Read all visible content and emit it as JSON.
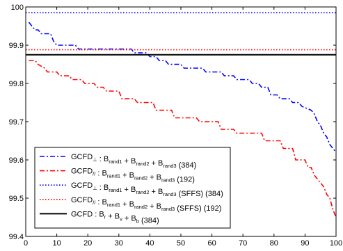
{
  "chart_data": {
    "type": "line",
    "title": "",
    "xlabel": "",
    "ylabel": "",
    "xlim": [
      0,
      100
    ],
    "ylim": [
      99.4,
      100
    ],
    "xticks": [
      "0",
      "10",
      "20",
      "30",
      "40",
      "50",
      "60",
      "70",
      "80",
      "90",
      "100"
    ],
    "yticks": [
      "99.4",
      "99.5",
      "99.6",
      "99.7",
      "99.8",
      "99.9",
      "100"
    ],
    "grid": false,
    "legend_position": "bottom-left",
    "series": [
      {
        "name": "GCFD⊥ : Brand1 + Brand2 + Brand3 (384)",
        "legend": {
          "prefix": "GCFD",
          "prefix_sub": "⊥",
          "parts": [
            [
              "B",
              "rand1"
            ],
            [
              "B",
              "rand2"
            ],
            [
              "B",
              "rand3"
            ]
          ],
          "suffix": "(384)"
        },
        "color": "#0000ff",
        "style": "dashdot",
        "x": [
          1,
          2,
          3,
          4,
          5,
          8,
          9,
          10,
          16,
          17,
          22,
          23,
          34,
          35,
          39,
          40,
          42,
          43,
          45,
          46,
          50,
          51,
          57,
          58,
          63,
          64,
          67,
          68,
          72,
          73,
          75,
          76,
          78,
          79,
          81,
          82,
          85,
          86,
          88,
          89,
          92,
          93,
          94,
          95,
          96,
          97,
          98,
          99,
          100
        ],
        "y": [
          99.96,
          99.95,
          99.94,
          99.94,
          99.93,
          99.93,
          99.91,
          99.9,
          99.9,
          99.89,
          99.89,
          99.89,
          99.89,
          99.88,
          99.88,
          99.87,
          99.87,
          99.86,
          99.86,
          99.85,
          99.85,
          99.84,
          99.84,
          99.83,
          99.83,
          99.82,
          99.82,
          99.81,
          99.81,
          99.8,
          99.8,
          99.79,
          99.79,
          99.77,
          99.77,
          99.76,
          99.76,
          99.75,
          99.75,
          99.74,
          99.73,
          99.72,
          99.7,
          99.69,
          99.67,
          99.66,
          99.64,
          99.63,
          99.62
        ]
      },
      {
        "name": "GCFD// : Brand1 + Brand2 + Brand3 (192)",
        "legend": {
          "prefix": "GCFD",
          "prefix_sub": "//",
          "parts": [
            [
              "B",
              "rand1"
            ],
            [
              "B",
              "rand2"
            ],
            [
              "B",
              "rand3"
            ]
          ],
          "suffix": "(192)"
        },
        "color": "#ff0000",
        "style": "dashdot",
        "x": [
          1,
          3,
          4,
          6,
          7,
          10,
          11,
          14,
          15,
          18,
          19,
          22,
          23,
          25,
          26,
          30,
          31,
          35,
          36,
          41,
          42,
          47,
          48,
          55,
          56,
          62,
          63,
          67,
          68,
          76,
          77,
          82,
          83,
          86,
          87,
          90,
          91,
          92,
          93,
          95,
          96,
          97,
          98,
          99,
          100
        ],
        "y": [
          99.86,
          99.86,
          99.85,
          99.84,
          99.83,
          99.83,
          99.82,
          99.82,
          99.81,
          99.81,
          99.8,
          99.8,
          99.79,
          99.79,
          99.78,
          99.78,
          99.76,
          99.76,
          99.75,
          99.75,
          99.73,
          99.73,
          99.71,
          99.71,
          99.7,
          99.7,
          99.68,
          99.68,
          99.67,
          99.67,
          99.65,
          99.65,
          99.63,
          99.63,
          99.6,
          99.6,
          99.58,
          99.58,
          99.56,
          99.54,
          99.53,
          99.51,
          99.5,
          99.47,
          99.45
        ]
      },
      {
        "name": "GCFD⊥ : Brand1 + Brand2 + Brand3 (SFFS) (384)",
        "legend": {
          "prefix": "GCFD",
          "prefix_sub": "⊥",
          "parts": [
            [
              "B",
              "rand1"
            ],
            [
              "B",
              "rand2"
            ],
            [
              "B",
              "rand3"
            ]
          ],
          "suffix": "(SFFS) (384)"
        },
        "color": "#0000ff",
        "style": "dotted",
        "x": [
          0,
          100
        ],
        "y": [
          99.985,
          99.985
        ]
      },
      {
        "name": "GCFD// : Brand1 + Brand2 + Brand3 (SFFS) (192)",
        "legend": {
          "prefix": "GCFD",
          "prefix_sub": "//",
          "parts": [
            [
              "B",
              "rand1"
            ],
            [
              "B",
              "rand2"
            ],
            [
              "B",
              "rand3"
            ]
          ],
          "suffix": "(SFFS) (192)"
        },
        "color": "#ff0000",
        "style": "dotted",
        "x": [
          0,
          100
        ],
        "y": [
          99.888,
          99.888
        ]
      },
      {
        "name": "GCFD : Br + Bv + Bb (384)",
        "legend": {
          "prefix": "GCFD",
          "prefix_sub": "",
          "parts": [
            [
              "B",
              "r"
            ],
            [
              "B",
              "v"
            ],
            [
              "B",
              "b"
            ]
          ],
          "suffix": "(384)"
        },
        "color": "#000000",
        "style": "solid",
        "x": [
          0,
          100
        ],
        "y": [
          99.875,
          99.875
        ]
      }
    ]
  }
}
